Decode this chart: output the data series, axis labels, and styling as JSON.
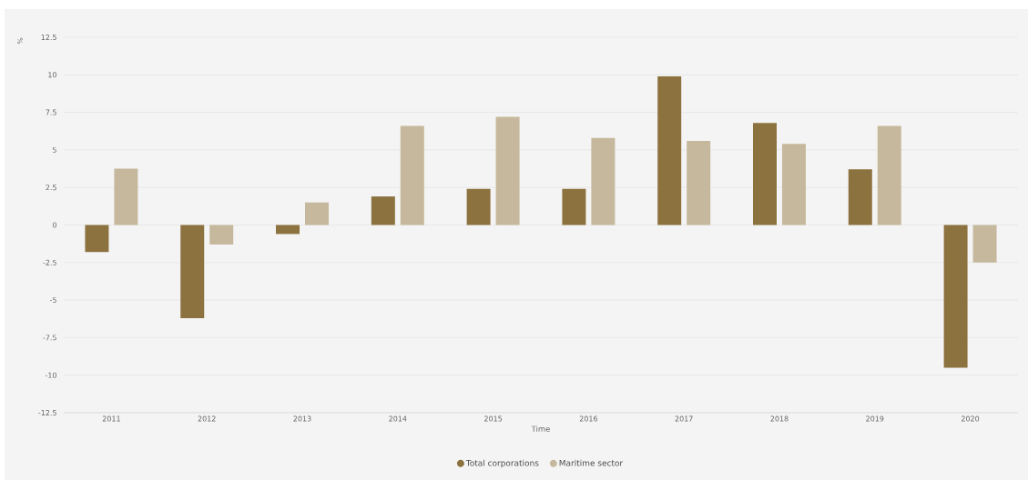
{
  "chart_data": {
    "type": "bar",
    "xlabel": "Time",
    "ylabel": "%",
    "categories": [
      "2011",
      "2012",
      "2013",
      "2014",
      "2015",
      "2016",
      "2017",
      "2018",
      "2019",
      "2020"
    ],
    "series": [
      {
        "name": "Total corporations",
        "color": "#8c723e",
        "values": [
          -1.8,
          -6.2,
          -0.6,
          1.9,
          2.4,
          2.4,
          9.9,
          6.8,
          3.7,
          -9.5
        ]
      },
      {
        "name": "Maritime sector",
        "color": "#c6b89c",
        "values": [
          3.75,
          -1.3,
          1.5,
          6.6,
          7.2,
          5.8,
          5.6,
          5.4,
          6.6,
          -2.5
        ]
      }
    ],
    "ylim": [
      -12.5,
      12.5
    ],
    "yticks": [
      -12.5,
      -10,
      -7.5,
      -5,
      -2.5,
      0,
      2.5,
      5,
      7.5,
      10,
      12.5
    ],
    "grid": "y",
    "legend": "bottom"
  }
}
